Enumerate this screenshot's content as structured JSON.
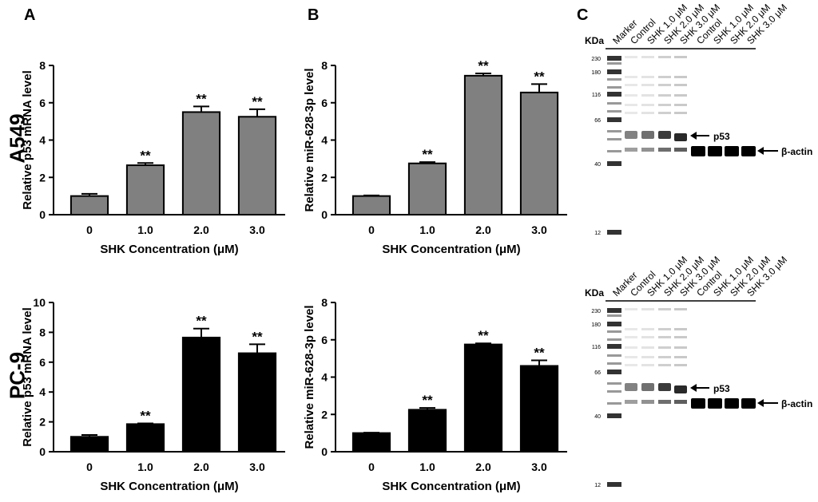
{
  "panel_letters": [
    "A",
    "B",
    "C"
  ],
  "row_labels": [
    "A549",
    "PC-9"
  ],
  "chart_data": [
    {
      "id": "A-top",
      "type": "bar",
      "categories": [
        "0",
        "1.0",
        "2.0",
        "3.0"
      ],
      "values": [
        1.0,
        2.65,
        5.5,
        5.25
      ],
      "errors": [
        0.12,
        0.12,
        0.3,
        0.4
      ],
      "significance": [
        "",
        "**",
        "**",
        "**"
      ],
      "ylabel": "Relative p53 mRNA level",
      "xlabel": "SHK Concentration (μM)",
      "ylim": [
        0,
        8
      ],
      "yticks": [
        0,
        2,
        4,
        6,
        8
      ],
      "bar_color": "#808080"
    },
    {
      "id": "B-top",
      "type": "bar",
      "categories": [
        "0",
        "1.0",
        "2.0",
        "3.0"
      ],
      "values": [
        1.0,
        2.75,
        7.45,
        6.55
      ],
      "errors": [
        0.03,
        0.07,
        0.12,
        0.45
      ],
      "significance": [
        "",
        "**",
        "**",
        "**"
      ],
      "ylabel": "Relative miR-628-3p level",
      "xlabel": "SHK Concentration (μM)",
      "ylim": [
        0,
        8
      ],
      "yticks": [
        0,
        2,
        4,
        6,
        8
      ],
      "bar_color": "#808080"
    },
    {
      "id": "A-bottom",
      "type": "bar",
      "categories": [
        "0",
        "1.0",
        "2.0",
        "3.0"
      ],
      "values": [
        1.0,
        1.85,
        7.65,
        6.6
      ],
      "errors": [
        0.12,
        0.05,
        0.6,
        0.6
      ],
      "significance": [
        "",
        "**",
        "**",
        "**"
      ],
      "ylabel": "Relative p53 mRNA level",
      "xlabel": "SHK Concentration (μM)",
      "ylim": [
        0,
        10
      ],
      "yticks": [
        0,
        2,
        4,
        6,
        8,
        10
      ],
      "bar_color": "#000000"
    },
    {
      "id": "B-bottom",
      "type": "bar",
      "categories": [
        "0",
        "1.0",
        "2.0",
        "3.0"
      ],
      "values": [
        1.0,
        2.25,
        5.75,
        4.6
      ],
      "errors": [
        0.02,
        0.1,
        0.06,
        0.3
      ],
      "significance": [
        "",
        "**",
        "**",
        "**"
      ],
      "ylabel": "Relative miR-628-3p level",
      "xlabel": "SHK Concentration (μM)",
      "ylim": [
        0,
        8
      ],
      "yticks": [
        0,
        2,
        4,
        6,
        8
      ],
      "bar_color": "#000000"
    }
  ],
  "gel": {
    "kda_title": "KDa",
    "lane_labels": [
      "Marker",
      "Control",
      "SHK 1.0 μM",
      "SHK 2.0 μM",
      "SHK 3.0 μM",
      "Control",
      "SHK 1.0 μM",
      "SHK 2.0 μM",
      "SHK 3.0 μM"
    ],
    "marker_kda": [
      "230",
      "180",
      "116",
      "66",
      "40",
      "12"
    ],
    "band_p53": "p53",
    "band_actin": "β-actin"
  }
}
